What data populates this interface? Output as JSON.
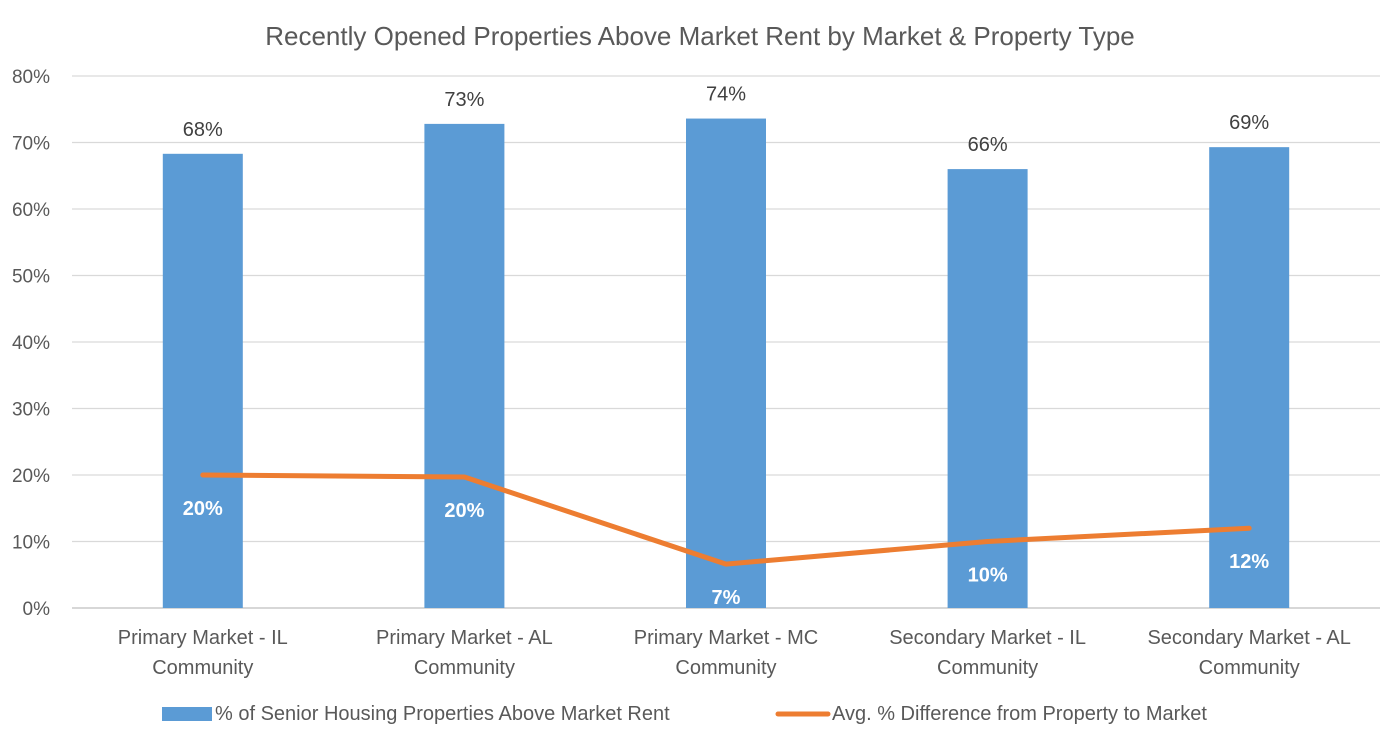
{
  "chart_data": {
    "type": "bar",
    "title": "Recently Opened Properties Above Market Rent by Market & Property Type",
    "categories": [
      [
        "Primary Market - IL",
        "Community"
      ],
      [
        "Primary Market - AL",
        "Community"
      ],
      [
        "Primary Market - MC",
        "Community"
      ],
      [
        "Secondary Market - IL",
        "Community"
      ],
      [
        "Secondary Market - AL",
        "Community"
      ]
    ],
    "ylim": [
      0,
      80
    ],
    "yticks": [
      "0%",
      "10%",
      "20%",
      "30%",
      "40%",
      "50%",
      "60%",
      "70%",
      "80%"
    ],
    "ytick_values": [
      0,
      10,
      20,
      30,
      40,
      50,
      60,
      70,
      80
    ],
    "grid": true,
    "legend_position": "bottom",
    "series": [
      {
        "name": "% of Senior Housing Properties Above Market Rent",
        "type": "bar",
        "color": "#5b9bd5",
        "values": [
          68.3,
          72.8,
          73.6,
          66.0,
          69.3
        ],
        "labels": [
          "68%",
          "73%",
          "74%",
          "66%",
          "69%"
        ]
      },
      {
        "name": "Avg. % Difference from Property to Market",
        "type": "line",
        "color": "#ed7d31",
        "values": [
          20.0,
          19.7,
          6.6,
          10.0,
          12.0
        ],
        "labels": [
          "20%",
          "20%",
          "7%",
          "10%",
          "12%"
        ]
      }
    ]
  }
}
